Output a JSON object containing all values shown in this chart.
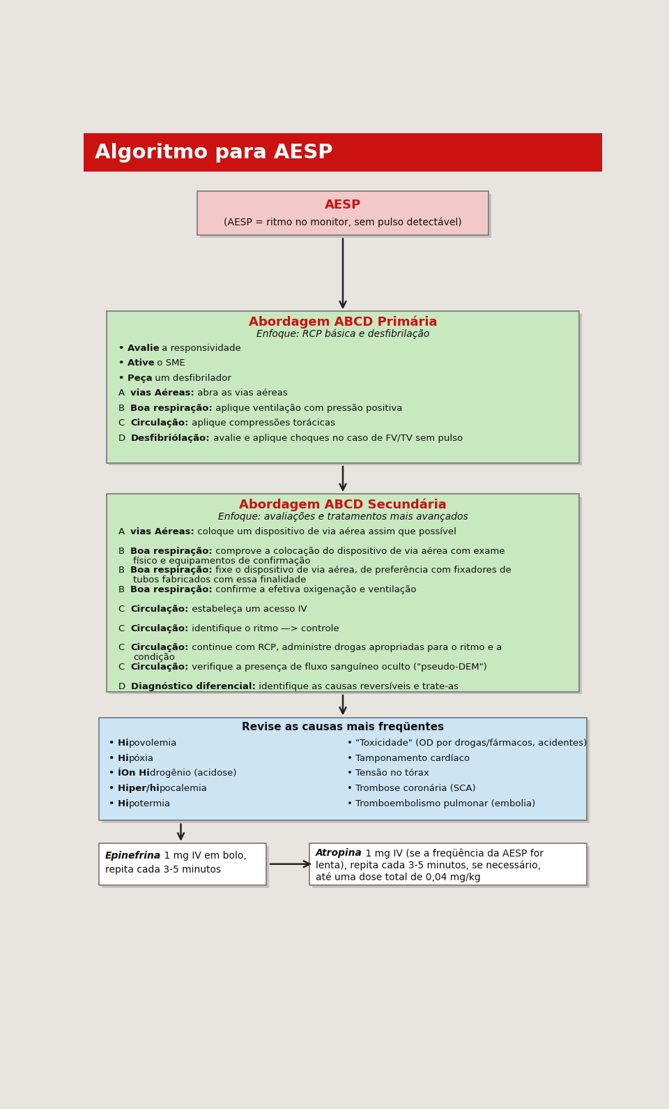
{
  "title": "Algoritmo para AESP",
  "title_bg": "#cc1111",
  "title_color": "#ffffff",
  "bg_color": "#e8e4e0",
  "box1": {
    "title": "AESP",
    "subtitle": "(AESP = ritmo no monitor, sem pulso detectável)",
    "bg": "#f2c8c8",
    "border": "#777777",
    "title_color": "#cc1111"
  },
  "box2": {
    "title": "Abordagem ABCD Primária",
    "subtitle": "Enfoque: RCP básica e desfibrilação",
    "bg": "#c8e8c0",
    "border": "#777777",
    "title_color": "#cc1111",
    "lines": [
      {
        "prefix": "",
        "bold": "• Avalie",
        "rest": " a responsividade"
      },
      {
        "prefix": "",
        "bold": "• Ative",
        "rest": " o SME"
      },
      {
        "prefix": "",
        "bold": "• Peça",
        "rest": " um desfibrilador"
      },
      {
        "prefix": "A",
        "bold": "vias Aéreas:",
        "rest": " abra as vias aéreas"
      },
      {
        "prefix": "B",
        "bold": "Boa respiração:",
        "rest": " aplique ventilação com pressão positiva"
      },
      {
        "prefix": "C",
        "bold": "Circulação:",
        "rest": " aplique compressões torácicas"
      },
      {
        "prefix": "D",
        "bold": "Desfibriólação:",
        "rest": " avalie e aplique choques no caso de FV/TV sem pulso"
      }
    ]
  },
  "box3": {
    "title": "Abordagem ABCD Secundária",
    "subtitle": "Enfoque: avaliações e tratamentos mais avançados",
    "bg": "#c8e8c0",
    "border": "#777777",
    "title_color": "#cc1111",
    "lines": [
      {
        "prefix": "A",
        "bold": "vias Aéreas:",
        "rest": " coloque um dispositivo de via aérea assim que possível"
      },
      {
        "prefix": "B",
        "bold": "Boa respiração:",
        "rest": " comprove a colocação do dispositivo de via aérea com exame\n    físico e equipamentos de confirmação"
      },
      {
        "prefix": "B",
        "bold": "Boa respiração:",
        "rest": " fixe o dispositivo de via aérea, de preferência com fixadores de\n    tubos fabricados com essa finalidade"
      },
      {
        "prefix": "B",
        "bold": "Boa respiração:",
        "rest": " confirme a efetiva oxigenação e ventilação"
      },
      {
        "prefix": "C",
        "bold": "Circulação:",
        "rest": " estabeleça um acesso IV"
      },
      {
        "prefix": "C",
        "bold": "Circulação:",
        "rest": " identifique o ritmo —> controle"
      },
      {
        "prefix": "C",
        "bold": "Circulação:",
        "rest": " continue com RCP, administre drogas apropriadas para o ritmo e a\n    condição"
      },
      {
        "prefix": "C",
        "bold": "Circulação:",
        "rest": " verifique a presença de fluxo sanguíneo oculto (\"pseudo-DEM\")"
      },
      {
        "prefix": "D",
        "bold": "Diagnóstico diferencial:",
        "rest": " identifique as causas reversíveis e trate-as"
      }
    ]
  },
  "box4": {
    "title": "Revise as causas mais freqüentes",
    "bg": "#cce4f4",
    "border": "#777777",
    "title_color": "#111111",
    "left_items": [
      [
        {
          "t": "• Hi",
          "b": true
        },
        {
          "t": "povolemia",
          "b": false
        }
      ],
      [
        {
          "t": "• Hi",
          "b": true
        },
        {
          "t": "póxia",
          "b": false
        }
      ],
      [
        {
          "t": "• ÍOn Hi",
          "b": true
        },
        {
          "t": "drogênio (acidose)",
          "b": false
        }
      ],
      [
        {
          "t": "• Hiper/hi",
          "b": true
        },
        {
          "t": "pocalemia",
          "b": false
        }
      ],
      [
        {
          "t": "• Hi",
          "b": true
        },
        {
          "t": "potermia",
          "b": false
        }
      ]
    ],
    "right_items": [
      "• \"Toxicidade\" (OD por drogas/fármacos, acidentes)",
      "• Tamponamento cardíaco",
      "• Tensão no tórax",
      "• Trombose coronária (SCA)",
      "• Tromboembolismo pulmonar (embolia)"
    ]
  },
  "box5": {
    "parts": [
      {
        "t": "Epinefrina",
        "b": true,
        "i": true
      },
      {
        "t": " 1 mg IV em bolo,",
        "b": false,
        "i": false
      }
    ],
    "line2": "repita cada 3-5 minutos",
    "bg": "#ffffff",
    "border": "#777777"
  },
  "box6": {
    "parts": [
      {
        "t": "Atropina",
        "b": true,
        "i": true
      },
      {
        "t": " 1 mg IV (se a freqüência da AESP for",
        "b": false,
        "i": false
      }
    ],
    "line2": "lenta), repita cada 3-5 minutos, se necessário,",
    "line3": "até uma dose total de 0,04 mg/kg",
    "bg": "#ffffff",
    "border": "#777777"
  },
  "arrow_color": "#222222"
}
